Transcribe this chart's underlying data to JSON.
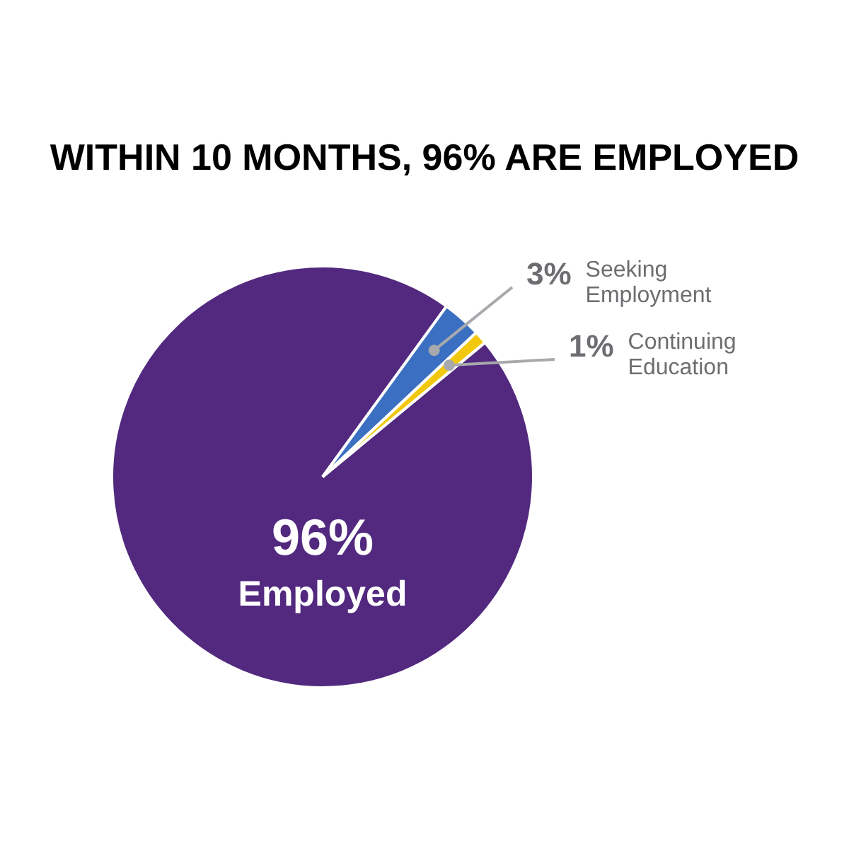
{
  "chart_data": {
    "type": "pie",
    "title": "WITHIN 10 MONTHS, 96% ARE EMPLOYED",
    "categories": [
      "Employed",
      "Seeking Employment",
      "Continuing Education"
    ],
    "values": [
      96,
      3,
      1
    ],
    "colors": [
      "#52297f",
      "#3b6fc1",
      "#f2c80f"
    ],
    "value_labels": [
      "96%",
      "3%",
      "1%"
    ],
    "legend": false
  }
}
